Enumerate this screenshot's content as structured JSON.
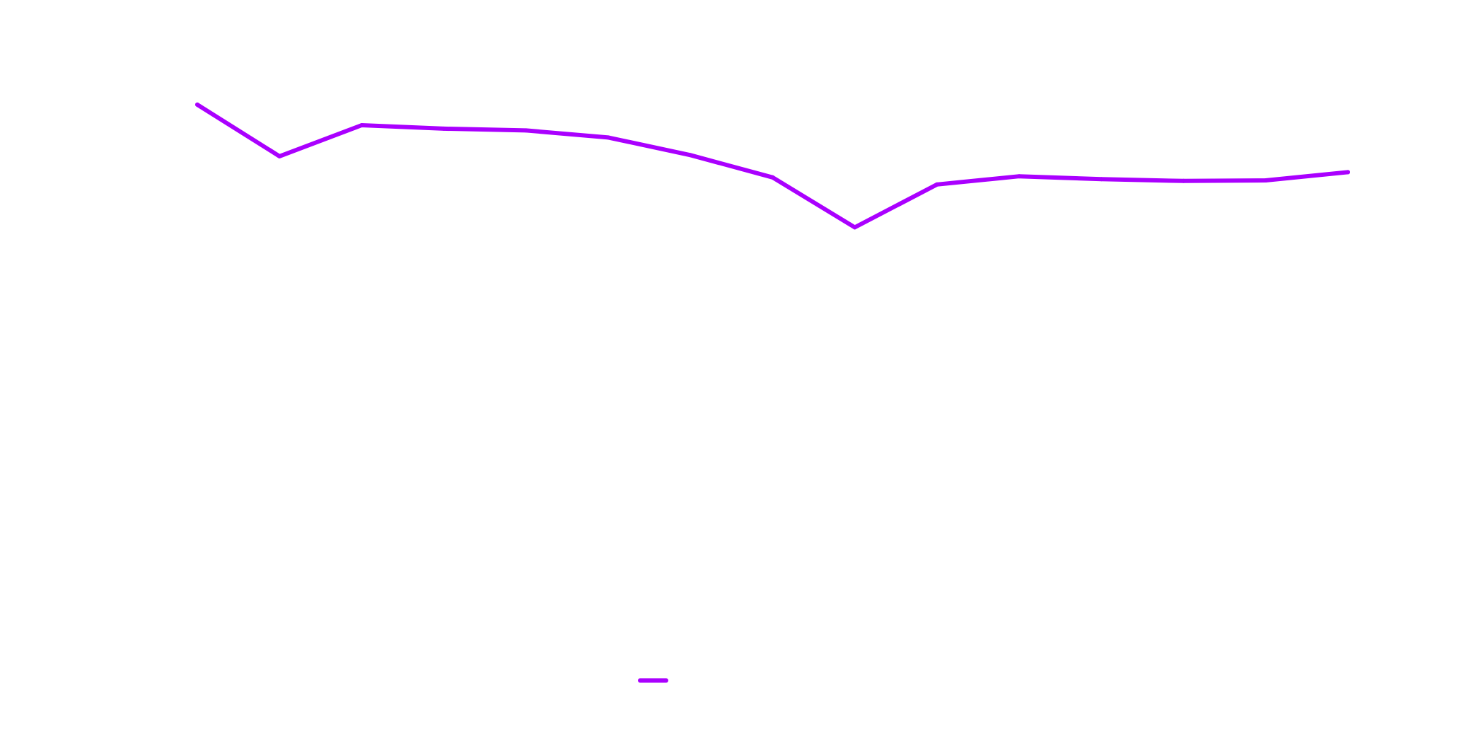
{
  "chart_data": {
    "type": "line",
    "title": "",
    "xlabel": "",
    "ylabel": "",
    "grid": false,
    "legend_position": "bottom-center",
    "ylim": [
      0,
      100
    ],
    "x": [
      0,
      1,
      2,
      3,
      4,
      5,
      6,
      7,
      8,
      9,
      10,
      11,
      12,
      13,
      14
    ],
    "series": [
      {
        "color": "#aa00ff",
        "values": [
          87,
          78.2,
          83.5,
          82.9,
          82.6,
          81.4,
          78.4,
          74.6,
          66.1,
          73.4,
          74.8,
          74.3,
          74,
          74.1,
          75.5
        ]
      }
    ]
  }
}
